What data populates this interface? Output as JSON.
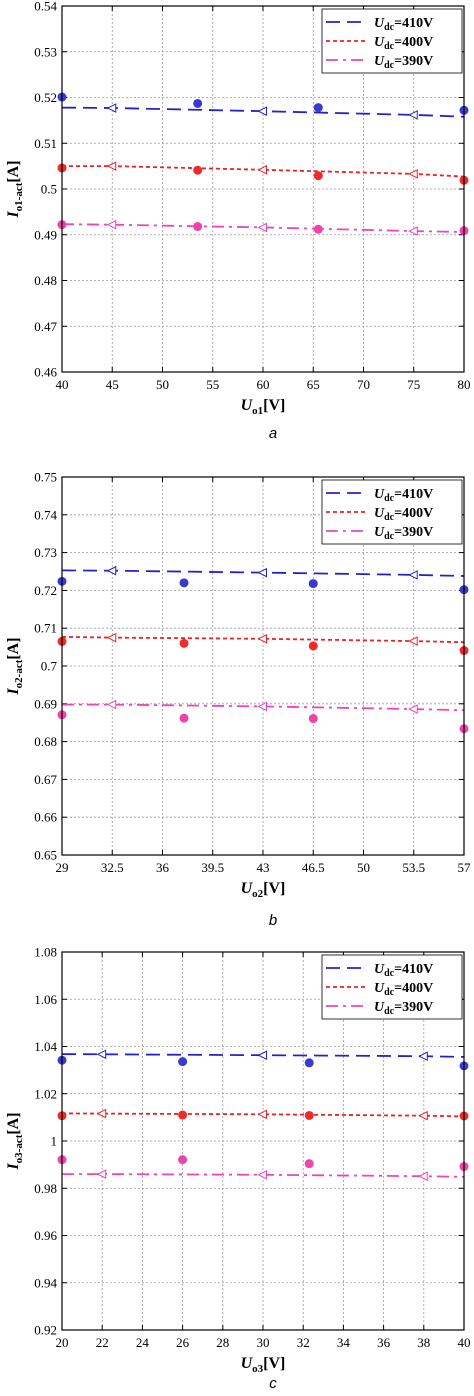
{
  "legend": {
    "u_symbol": "U",
    "u_subscript": "dc",
    "entries": [
      "=410V",
      "=400V",
      "=390V"
    ]
  },
  "colors": {
    "series_410": "#2222cc",
    "series_400": "#ee2222",
    "series_390": "#ee44bb",
    "marker_410": "#3a3ad0",
    "marker_400": "#ee2a2a",
    "marker_390": "#ee44aa",
    "grid": "#9a9a9a"
  },
  "chart_data": [
    {
      "type": "line",
      "panel_label": "a",
      "xlabel": {
        "symbol": "U",
        "subscript": "o1",
        "unit": "[V]"
      },
      "ylabel": {
        "symbol": "I",
        "subscript": "o1-act",
        "unit": "[A]"
      },
      "xlim": [
        40,
        80
      ],
      "ylim": [
        0.46,
        0.54
      ],
      "x_ticks": [
        40,
        45,
        50,
        55,
        60,
        65,
        70,
        75,
        80
      ],
      "y_ticks": [
        0.46,
        0.47,
        0.48,
        0.49,
        0.5,
        0.51,
        0.52,
        0.53,
        0.54
      ],
      "x_tick_labels": [
        "40",
        "45",
        "50",
        "55",
        "60",
        "65",
        "70",
        "75",
        "80"
      ],
      "y_tick_labels": [
        "0.46",
        "0.47",
        "0.48",
        "0.49",
        "0.5",
        "0.51",
        "0.52",
        "0.53",
        "0.54"
      ],
      "grid": true,
      "legend_position": "top-right",
      "series": [
        {
          "name": "Udc=410V",
          "style": "dashed",
          "x": [
            40,
            45,
            60,
            75,
            80
          ],
          "y": [
            0.5178,
            0.5177,
            0.517,
            0.5162,
            0.5158
          ],
          "measured": {
            "x": [
              40,
              53.5,
              65.5,
              80
            ],
            "y": [
              0.5201,
              0.5187,
              0.5178,
              0.5172
            ]
          }
        },
        {
          "name": "Udc=400V",
          "style": "dotted",
          "x": [
            40,
            45,
            60,
            75,
            80
          ],
          "y": [
            0.505,
            0.505,
            0.5042,
            0.5033,
            0.5027
          ],
          "measured": {
            "x": [
              40,
              53.5,
              65.5,
              80
            ],
            "y": [
              0.5046,
              0.5041,
              0.5029,
              0.5019
            ]
          }
        },
        {
          "name": "Udc=390V",
          "style": "dash-dot",
          "x": [
            40,
            45,
            60,
            75,
            80
          ],
          "y": [
            0.4923,
            0.4922,
            0.4916,
            0.4908,
            0.4906
          ],
          "measured": {
            "x": [
              40,
              53.5,
              65.5,
              80
            ],
            "y": [
              0.4922,
              0.4918,
              0.4912,
              0.4909
            ]
          }
        }
      ]
    },
    {
      "type": "line",
      "panel_label": "b",
      "xlabel": {
        "symbol": "U",
        "subscript": "o2",
        "unit": "[V]"
      },
      "ylabel": {
        "symbol": "I",
        "subscript": "o2-act",
        "unit": "[A]"
      },
      "xlim": [
        29,
        57
      ],
      "ylim": [
        0.65,
        0.75
      ],
      "x_ticks": [
        29,
        32.5,
        36,
        39.5,
        43,
        46.5,
        50,
        53.5,
        57
      ],
      "y_ticks": [
        0.65,
        0.66,
        0.67,
        0.68,
        0.69,
        0.7,
        0.71,
        0.72,
        0.73,
        0.74,
        0.75
      ],
      "x_tick_labels": [
        "29",
        "32.5",
        "36",
        "39.5",
        "43",
        "46.5",
        "50",
        "53.5",
        "57"
      ],
      "y_tick_labels": [
        "0.65",
        "0.66",
        "0.67",
        "0.68",
        "0.69",
        "0.7",
        "0.71",
        "0.72",
        "0.73",
        "0.74",
        "0.75"
      ],
      "grid": true,
      "legend_position": "top-right",
      "series": [
        {
          "name": "Udc=410V",
          "style": "dashed",
          "x": [
            29,
            32.5,
            43,
            53.5,
            57
          ],
          "y": [
            0.7253,
            0.7252,
            0.7247,
            0.7241,
            0.7238
          ],
          "measured": {
            "x": [
              29,
              37.5,
              46.5,
              57
            ],
            "y": [
              0.7224,
              0.722,
              0.7218,
              0.7202
            ]
          }
        },
        {
          "name": "Udc=400V",
          "style": "dotted",
          "x": [
            29,
            32.5,
            43,
            53.5,
            57
          ],
          "y": [
            0.7077,
            0.7075,
            0.7072,
            0.7066,
            0.7063
          ],
          "measured": {
            "x": [
              29,
              37.5,
              46.5,
              57
            ],
            "y": [
              0.7065,
              0.706,
              0.7053,
              0.7041
            ]
          }
        },
        {
          "name": "Udc=390V",
          "style": "dash-dot",
          "x": [
            29,
            32.5,
            43,
            53.5,
            57
          ],
          "y": [
            0.6898,
            0.6898,
            0.6893,
            0.6886,
            0.6883
          ],
          "measured": {
            "x": [
              29,
              37.5,
              46.5,
              57
            ],
            "y": [
              0.6871,
              0.6862,
              0.6861,
              0.6834
            ]
          }
        }
      ]
    },
    {
      "type": "line",
      "panel_label": "c",
      "xlabel": {
        "symbol": "U",
        "subscript": "o3",
        "unit": "[V]"
      },
      "ylabel": {
        "symbol": "I",
        "subscript": "o3-act",
        "unit": "[A]"
      },
      "xlim": [
        20,
        40
      ],
      "ylim": [
        0.92,
        1.08
      ],
      "x_ticks": [
        20,
        22,
        24,
        26,
        28,
        30,
        32,
        34,
        36,
        38,
        40
      ],
      "y_ticks": [
        0.92,
        0.94,
        0.96,
        0.98,
        1.0,
        1.02,
        1.04,
        1.06,
        1.08
      ],
      "x_tick_labels": [
        "20",
        "22",
        "24",
        "26",
        "28",
        "30",
        "32",
        "34",
        "36",
        "38",
        "40"
      ],
      "y_tick_labels": [
        "0.92",
        "0.94",
        "0.96",
        "0.98",
        "1",
        "1.02",
        "1.04",
        "1.06",
        "1.08"
      ],
      "grid": true,
      "legend_position": "top-right",
      "series": [
        {
          "name": "Udc=410V",
          "style": "dashed",
          "x": [
            20,
            22,
            30,
            38,
            40
          ],
          "y": [
            1.0368,
            1.0367,
            1.0363,
            1.0359,
            1.0356
          ],
          "measured": {
            "x": [
              20,
              26,
              32.3,
              40
            ],
            "y": [
              1.0342,
              1.0336,
              1.0331,
              1.0318
            ]
          }
        },
        {
          "name": "Udc=400V",
          "style": "dotted",
          "x": [
            20,
            22,
            30,
            38,
            40
          ],
          "y": [
            1.0117,
            1.0116,
            1.0113,
            1.0107,
            1.0104
          ],
          "measured": {
            "x": [
              20,
              26,
              32.3,
              40
            ],
            "y": [
              1.0107,
              1.011,
              1.0108,
              1.0106
            ]
          }
        },
        {
          "name": "Udc=390V",
          "style": "dash-dot",
          "x": [
            20,
            22,
            30,
            38,
            40
          ],
          "y": [
            0.986,
            0.986,
            0.9857,
            0.9851,
            0.9848
          ],
          "measured": {
            "x": [
              20,
              26,
              32.3,
              40
            ],
            "y": [
              0.9921,
              0.9921,
              0.9904,
              0.9892
            ]
          }
        }
      ]
    }
  ]
}
